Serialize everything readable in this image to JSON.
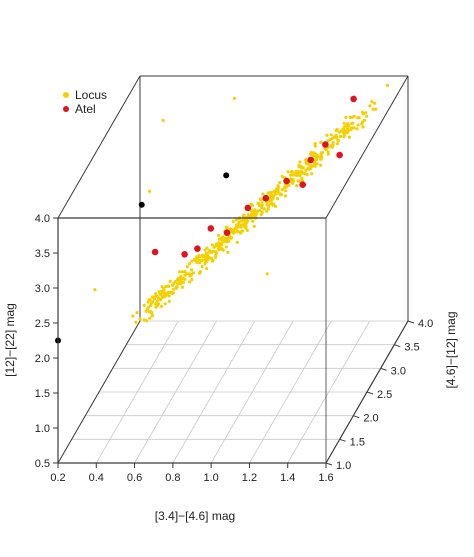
{
  "chart_data": {
    "type": "scatter",
    "projection": "3d-box",
    "xlabel": "[3.4]−[4.6] mag",
    "ylabel": "[4.6]−[12] mag",
    "zlabel": "[12]−[22] mag",
    "xlim": [
      0.2,
      1.6
    ],
    "ylim": [
      1.0,
      4.0
    ],
    "zlim": [
      0.5,
      4.0
    ],
    "x_ticks": [
      "0.2",
      "0.4",
      "0.6",
      "0.8",
      "1.0",
      "1.2",
      "1.4",
      "1.6"
    ],
    "y_ticks": [
      "1.0",
      "1.5",
      "2.0",
      "2.5",
      "3.0",
      "3.5",
      "4.0"
    ],
    "z_ticks": [
      "0.5",
      "1.0",
      "1.5",
      "2.0",
      "2.5",
      "3.0",
      "3.5",
      "4.0"
    ],
    "grid": "floor",
    "legend": {
      "position": "top-left",
      "entries": [
        {
          "label": "Locus",
          "color": "#f5d000"
        },
        {
          "label": "Atel",
          "color": "#e0141e"
        }
      ]
    },
    "series": [
      {
        "name": "Locus",
        "color": "#f5d000",
        "cluster": {
          "count": 520,
          "x_range": [
            0.55,
            1.45
          ],
          "y_range": [
            1.3,
            3.9
          ],
          "z_range": [
            2.3,
            3.7
          ]
        }
      },
      {
        "name": "Atel",
        "color": "#e0141e",
        "points": [
          [
            0.55,
            2.1,
            2.77
          ],
          [
            0.69,
            2.2,
            2.67
          ],
          [
            0.7,
            2.6,
            2.48
          ],
          [
            0.77,
            2.6,
            2.77
          ],
          [
            0.84,
            2.7,
            2.64
          ],
          [
            0.92,
            2.9,
            2.86
          ],
          [
            1.0,
            3.0,
            2.93
          ],
          [
            1.08,
            3.2,
            3.04
          ],
          [
            1.15,
            3.3,
            2.92
          ],
          [
            1.22,
            3.1,
            3.41
          ],
          [
            1.24,
            3.5,
            3.36
          ],
          [
            1.3,
            3.6,
            3.14
          ],
          [
            1.33,
            3.9,
            3.74
          ]
        ]
      },
      {
        "name": "",
        "color": "#000000",
        "points": [
          [
            0.2,
            1.0,
            2.25
          ],
          [
            0.58,
            1.4,
            3.92
          ],
          [
            0.95,
            1.9,
            4.0
          ]
        ]
      }
    ]
  }
}
